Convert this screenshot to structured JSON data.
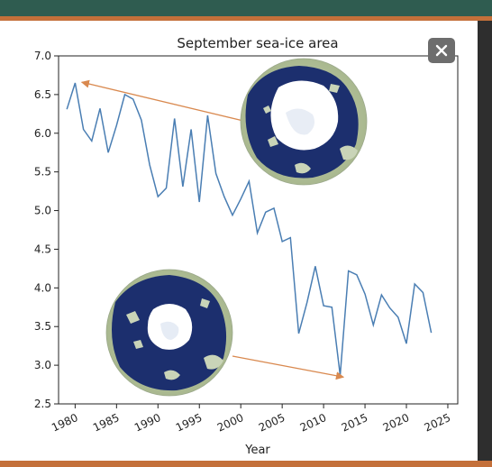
{
  "chart_data": {
    "type": "line",
    "title": "September sea-ice area",
    "xlabel": "Year",
    "ylabel": "",
    "xlim": [
      1978.0,
      2026.2
    ],
    "ylim": [
      2.5,
      7.0
    ],
    "x_ticks": [
      1980,
      1985,
      1990,
      1995,
      2000,
      2005,
      2010,
      2015,
      2020,
      2025
    ],
    "x_tick_labels": [
      "1980",
      "1985",
      "1990",
      "1995",
      "2000",
      "2005",
      "2010",
      "2015",
      "2020",
      "2025"
    ],
    "y_ticks": [
      2.5,
      3.0,
      3.5,
      4.0,
      4.5,
      5.0,
      5.5,
      6.0,
      6.5,
      7.0
    ],
    "y_tick_labels": [
      "2.5",
      "3.0",
      "3.5",
      "4.0",
      "4.5",
      "5.0",
      "5.5",
      "6.0",
      "6.5",
      "7.0"
    ],
    "grid": false,
    "series_color": "#4a7eb3",
    "arrow_color": "#d9894f",
    "series": [
      {
        "x": [
          1979,
          1980,
          1981,
          1982,
          1983,
          1984,
          1985,
          1986,
          1987,
          1988,
          1989,
          1990,
          1991,
          1992,
          1993,
          1994,
          1995,
          1996,
          1997,
          1998,
          1999,
          2000,
          2001,
          2002,
          2003,
          2004,
          2005,
          2006,
          2007,
          2008,
          2009,
          2010,
          2011,
          2012,
          2013,
          2014,
          2015,
          2016,
          2017,
          2018,
          2019,
          2020,
          2021,
          2022,
          2023
        ],
        "y": [
          6.31,
          6.65,
          6.05,
          5.9,
          6.32,
          5.75,
          6.1,
          6.5,
          6.44,
          6.17,
          5.59,
          5.18,
          5.29,
          6.19,
          5.31,
          6.05,
          5.11,
          6.23,
          5.48,
          5.18,
          4.94,
          5.15,
          5.38,
          4.71,
          4.98,
          5.03,
          4.6,
          4.65,
          3.41,
          3.81,
          4.28,
          3.77,
          3.75,
          2.87,
          4.22,
          4.17,
          3.92,
          3.52,
          3.91,
          3.74,
          3.62,
          3.28,
          4.05,
          3.94,
          3.42
        ]
      }
    ],
    "annotations": [
      {
        "type": "arrow",
        "from": "upper-globe",
        "to": [
          1980.8,
          6.66
        ],
        "depicts": "high-ice-year"
      },
      {
        "type": "arrow",
        "from": "lower-globe",
        "to": [
          2012.4,
          2.87
        ],
        "depicts": "low-ice-year"
      }
    ]
  },
  "close_icon": "close-icon"
}
